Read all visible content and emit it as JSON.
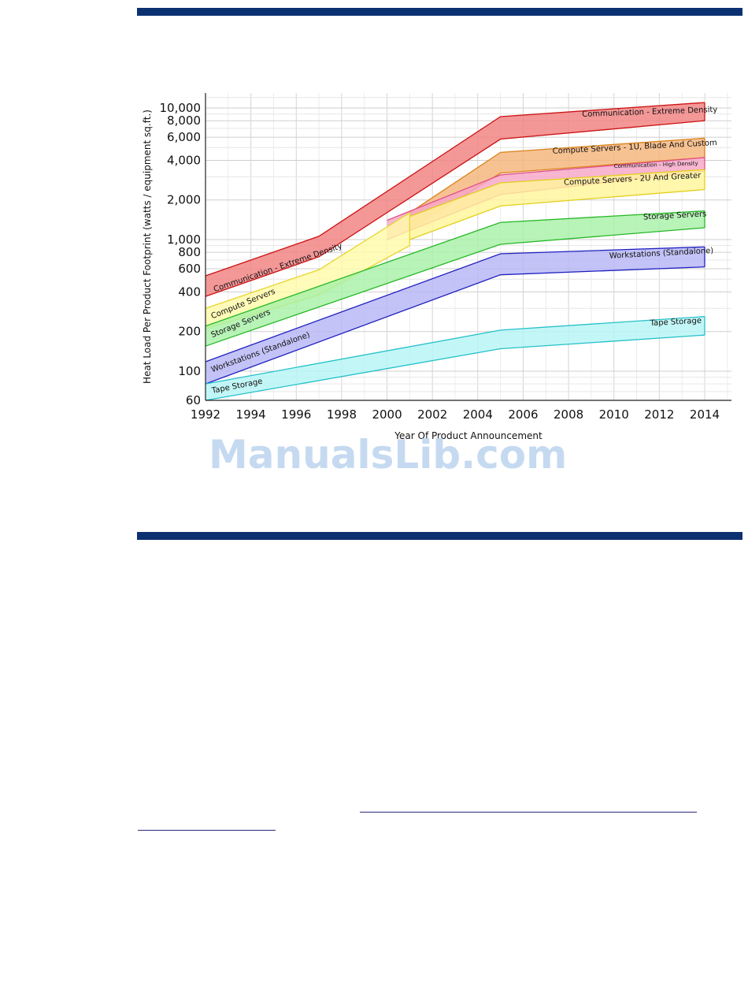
{
  "watermark": "ManualsLib.com",
  "chart_data": {
    "type": "area",
    "title": "",
    "xlabel": "Year Of Product Announcement",
    "ylabel": "Heat Load Per Product Footprint (watts / equipment sq.ft.)",
    "xlim": [
      1992,
      2014
    ],
    "ylim": [
      60,
      13000
    ],
    "yscale": "log",
    "xticks": [
      1992,
      1994,
      1996,
      1998,
      2000,
      2002,
      2004,
      2006,
      2008,
      2010,
      2012,
      2014
    ],
    "yticks": [
      60,
      100,
      200,
      400,
      600,
      800,
      1000,
      2000,
      4000,
      6000,
      8000,
      10000
    ],
    "ytick_labels": [
      "60",
      "100",
      "200",
      "400",
      "600",
      "800",
      "1,000",
      "2,000",
      "4,000",
      "6,000",
      "8,000",
      "10,000"
    ],
    "grid": true,
    "legend": "none (labels placed on bands)",
    "series": [
      {
        "name": "Communication - Extreme Density",
        "color": "#f08080",
        "edge": "#cc1111",
        "x": [
          1992,
          1997,
          2005,
          2014
        ],
        "upper": [
          530,
          1060,
          8600,
          11000
        ],
        "lower": [
          370,
          740,
          5800,
          8000
        ],
        "labels": [
          {
            "text": "Communication - Extreme Density",
            "x": 1992.4,
            "y": 400,
            "angle": -19
          },
          {
            "text": "Communication - Extreme Density",
            "x": 2008.6,
            "y": 8600,
            "angle": -2
          }
        ]
      },
      {
        "name": "Compute Servers - 1U, Blade And Custom",
        "color": "#f5b57a",
        "edge": "#d9821a",
        "x": [
          2001,
          2005,
          2014
        ],
        "upper": [
          1600,
          4600,
          5900
        ],
        "lower": [
          1200,
          3200,
          4200
        ],
        "labels": [
          {
            "text": "Compute Servers - 1U, Blade And Custom",
            "x": 2007.3,
            "y": 4500,
            "angle": -3
          }
        ]
      },
      {
        "name": "Communication - High Density",
        "color": "#f7a6c6",
        "edge": "#e0508a",
        "x": [
          2000,
          2005,
          2014
        ],
        "upper": [
          1400,
          3100,
          4200
        ],
        "lower": [
          1000,
          2200,
          3300
        ],
        "labels": [
          {
            "text": "Communication - High Density",
            "x": 2010.0,
            "y": 3500,
            "angle": -2
          }
        ]
      },
      {
        "name": "Compute Servers - 2U And Greater",
        "color": "#fff59a",
        "edge": "#e3cf1e",
        "x": [
          2001,
          2005,
          2014
        ],
        "upper": [
          1500,
          2700,
          3400
        ],
        "lower": [
          1000,
          1800,
          2400
        ],
        "labels": [
          {
            "text": "Compute Servers - 2U And Greater",
            "x": 2007.8,
            "y": 2600,
            "angle": -3
          }
        ]
      },
      {
        "name": "Compute Servers",
        "color": "#fffaa8",
        "edge": "#e8d52a",
        "x": [
          1992,
          1997,
          2001
        ],
        "upper": [
          300,
          590,
          1600
        ],
        "lower": [
          210,
          380,
          900
        ],
        "labels": [
          {
            "text": "Compute Servers",
            "x": 1992.3,
            "y": 250,
            "angle": -22
          }
        ]
      },
      {
        "name": "Storage Servers",
        "color": "#a8f0a8",
        "edge": "#26b826",
        "x": [
          1992,
          2005,
          2014
        ],
        "upper": [
          220,
          1350,
          1650
        ],
        "lower": [
          155,
          920,
          1230
        ],
        "labels": [
          {
            "text": "Storage Servers",
            "x": 1992.3,
            "y": 180,
            "angle": -22
          },
          {
            "text": "Storage Servers",
            "x": 2011.3,
            "y": 1420,
            "angle": -3
          }
        ]
      },
      {
        "name": "Workstations (Standalone)",
        "color": "#b6b6f5",
        "edge": "#2020c0",
        "x": [
          1992,
          2005,
          2014
        ],
        "upper": [
          118,
          780,
          880
        ],
        "lower": [
          80,
          540,
          620
        ],
        "labels": [
          {
            "text": "Workstations (Standalone)",
            "x": 1992.3,
            "y": 98,
            "angle": -20
          },
          {
            "text": "Workstations (Standalone)",
            "x": 2009.8,
            "y": 720,
            "angle": -3
          }
        ]
      },
      {
        "name": "Tape Storage",
        "color": "#b6f5f5",
        "edge": "#26c0c8",
        "x": [
          1992,
          2005,
          2014
        ],
        "upper": [
          80,
          205,
          260
        ],
        "lower": [
          60,
          148,
          188
        ],
        "labels": [
          {
            "text": "Tape Storage",
            "x": 1992.3,
            "y": 68,
            "angle": -11
          },
          {
            "text": "Tape Storage",
            "x": 2011.6,
            "y": 222,
            "angle": -3
          }
        ]
      }
    ]
  }
}
